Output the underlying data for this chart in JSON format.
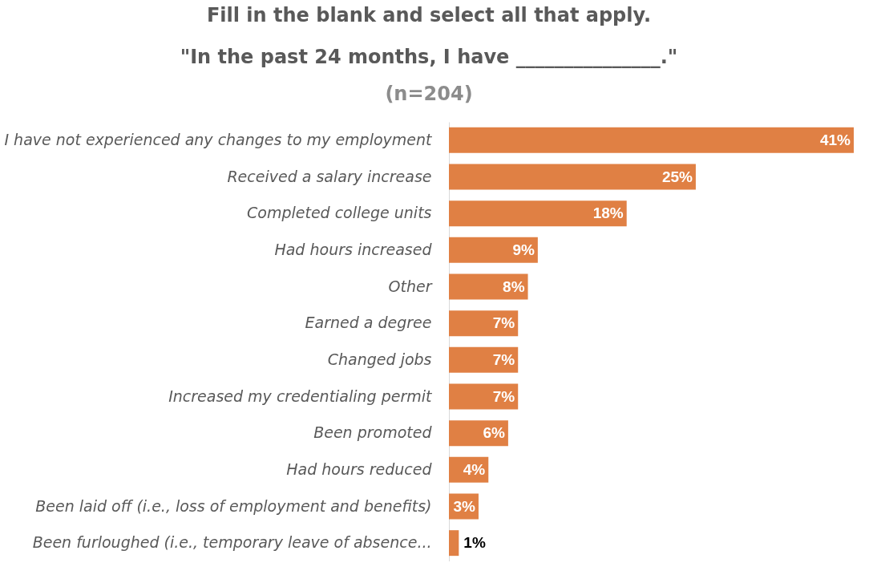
{
  "chart_data": {
    "type": "bar",
    "orientation": "horizontal",
    "title": "Fill in the blank and select all that apply.\n\"In the past 24 months, I have _______________.\"",
    "subtitle": "(n=204)",
    "categories": [
      "I have not experienced any changes to my employment",
      "Received a salary increase",
      "Completed college units",
      "Had hours increased",
      "Other",
      "Earned a degree",
      "Changed jobs",
      "Increased my credentialing permit",
      "Been promoted",
      "Had hours reduced",
      "Been laid off (i.e., loss of employment and benefits)",
      "Been furloughed (i.e., temporary leave of absence..."
    ],
    "values": [
      41,
      25,
      18,
      9,
      8,
      7,
      7,
      7,
      6,
      4,
      3,
      1
    ],
    "value_labels": [
      "41%",
      "25%",
      "18%",
      "9%",
      "8%",
      "7%",
      "7%",
      "7%",
      "6%",
      "4%",
      "3%",
      "1%"
    ],
    "color": "#e08044"
  }
}
